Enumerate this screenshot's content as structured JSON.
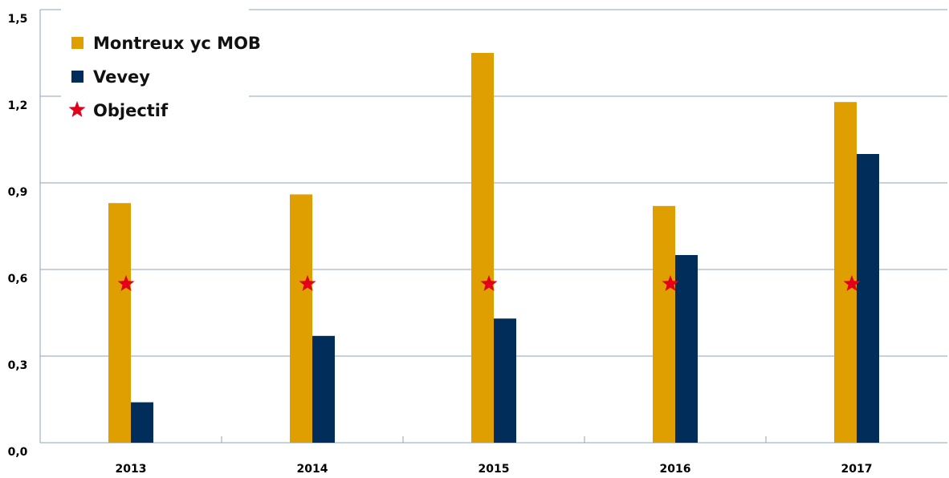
{
  "chart_data": {
    "type": "bar",
    "categories": [
      "2013",
      "2014",
      "2015",
      "2016",
      "2017"
    ],
    "series": [
      {
        "name": "Montreux yc MOB",
        "color": "#e09f00",
        "values": [
          0.83,
          0.86,
          1.35,
          0.82,
          1.18
        ]
      },
      {
        "name": "Vevey",
        "color": "#002d5a",
        "values": [
          0.14,
          0.37,
          0.43,
          0.65,
          1.0
        ]
      },
      {
        "name": "Objectif",
        "color": "#e3001b",
        "marker": "star",
        "values": [
          0.55,
          0.55,
          0.55,
          0.55,
          0.55
        ]
      }
    ],
    "ylim": [
      0,
      1.5
    ],
    "yticks": [
      {
        "value": 0,
        "label": "0,0"
      },
      {
        "value": 0.3,
        "label": "0,3"
      },
      {
        "value": 0.6,
        "label": "0,6"
      },
      {
        "value": 0.9,
        "label": "0,9"
      },
      {
        "value": 1.2,
        "label": "1,2"
      },
      {
        "value": 1.5,
        "label": "1,5"
      }
    ],
    "grid": true,
    "legend": "upper-left"
  }
}
